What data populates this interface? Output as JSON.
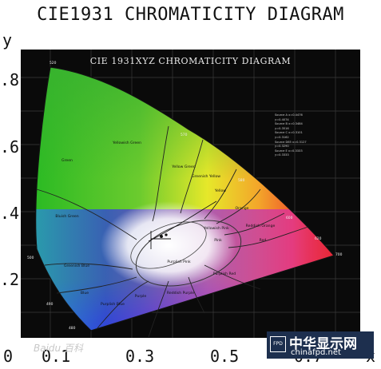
{
  "title": "CIE1931 CHROMATICITY DIAGRAM",
  "inner_title": "CIE 1931XYZ CHROMATICITY DIAGRAM",
  "y_axis_label": "y",
  "x_axis_label": "x",
  "y_ticks": [
    ".8",
    ".6",
    ".4",
    ".2"
  ],
  "x_ticks": [
    "0",
    "0.1",
    "0.3",
    "0.5",
    "0.7"
  ],
  "regions": [
    "Green",
    "Yellowish Green",
    "Yellow Green",
    "Greenish Yellow",
    "Yellow",
    "Orange",
    "Bluish Green",
    "Greenish Blue",
    "Blue",
    "Purplish Blue",
    "Purple",
    "Reddish Purple",
    "Purplish Pink",
    "Pink",
    "Purplish Red",
    "Red",
    "Reddish Orange",
    "Yellowish Pink"
  ],
  "wavelengths": [
    "520",
    "500",
    "490",
    "480",
    "570",
    "580",
    "600",
    "620",
    "700"
  ],
  "legend_lines": [
    "Source A x=0.4476",
    "y=0.4074",
    "Source B x=0.3484",
    "y=0.3516",
    "Source C x=0.3101",
    "y=0.3162",
    "Source D65 x=0.3127",
    "y=0.3290",
    "Source E x=0.3333",
    "y=0.3333"
  ],
  "watermark_left": "Baidu 百科",
  "watermark_right": {
    "badge": "FPD",
    "name": "中华显示网",
    "url": "chinafpd.net"
  },
  "colors": {
    "background": "#0a0a0a",
    "green": "#1fa81f",
    "red": "#e02020",
    "blue": "#2020d0",
    "white": "#ffffff"
  }
}
